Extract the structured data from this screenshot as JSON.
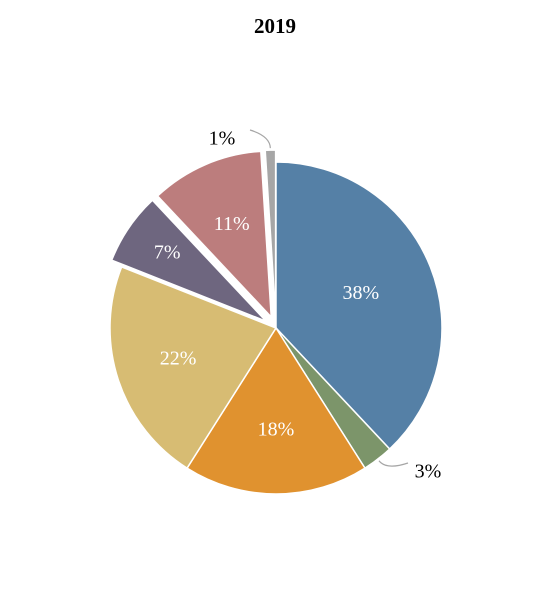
{
  "chart_data": {
    "type": "pie",
    "title": "2019",
    "slices": [
      {
        "label": "38%",
        "value": 38,
        "color": "#5580a6",
        "explode": false
      },
      {
        "label": "3%",
        "value": 3,
        "color": "#7c956a",
        "explode": false
      },
      {
        "label": "18%",
        "value": 18,
        "color": "#e0922f",
        "explode": false
      },
      {
        "label": "22%",
        "value": 22,
        "color": "#d7bc73",
        "explode": false
      },
      {
        "label": "7%",
        "value": 7,
        "color": "#6e667f",
        "explode": true
      },
      {
        "label": "11%",
        "value": 11,
        "color": "#bc7d7d",
        "explode": true
      },
      {
        "label": "1%",
        "value": 1,
        "color": "#a6a6a6",
        "explode": true
      }
    ],
    "legend": "none"
  }
}
